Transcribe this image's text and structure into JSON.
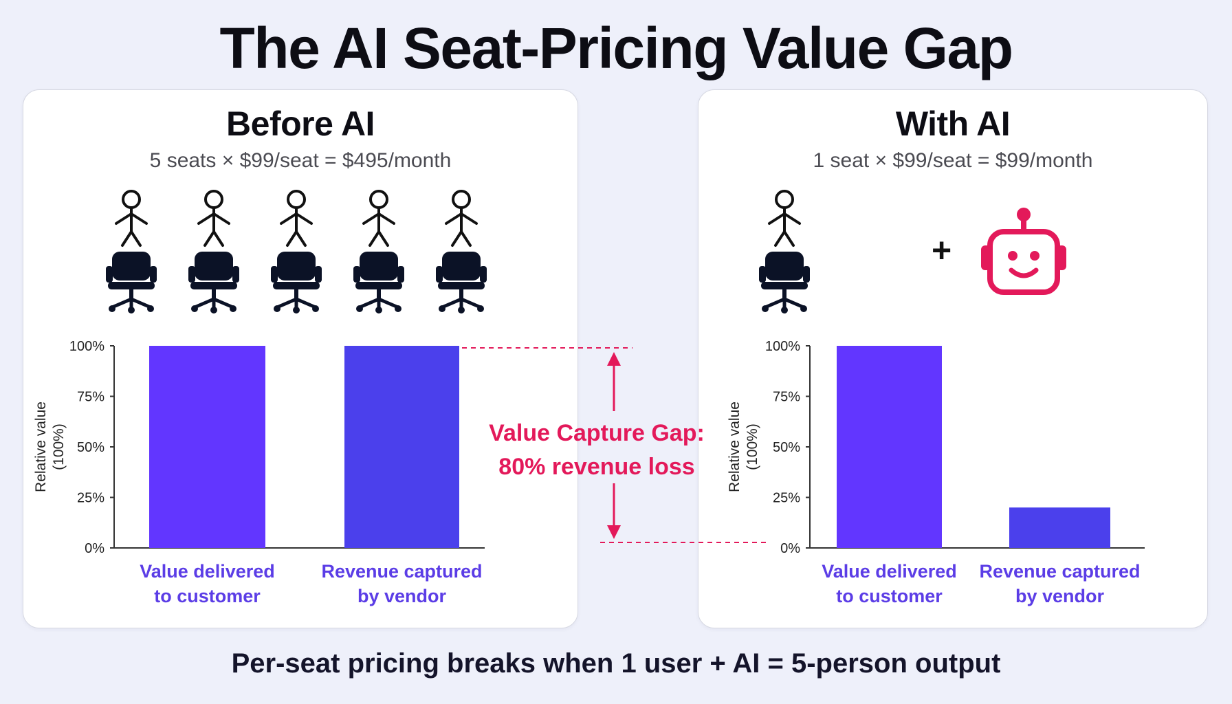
{
  "title": "The AI Seat-Pricing Value Gap",
  "bottom_caption": "Per-seat pricing breaks when 1 user + AI = 5-person output",
  "colors": {
    "bar_value": "#6236ff",
    "bar_revenue": "#4b40ec",
    "accent": "#e3195a",
    "category_text": "#5b3de6"
  },
  "panels": {
    "before": {
      "title": "Before AI",
      "formula": "5 seats × $99/seat = $495/month",
      "icons": [
        "person-icon",
        "office-chair-icon"
      ],
      "person_count": 5
    },
    "with": {
      "title": "With AI",
      "formula": "1 seat × $99/seat = $99/month",
      "icons": [
        "person-icon",
        "office-chair-icon",
        "plus-icon",
        "robot-icon"
      ],
      "person_count": 1,
      "plus": "+"
    }
  },
  "gap_annotation": {
    "line1": "Value Capture Gap:",
    "line2": "80% revenue loss"
  },
  "chart_data": [
    {
      "type": "bar",
      "panel": "Before AI",
      "categories": [
        [
          "Value delivered",
          "to customer"
        ],
        [
          "Revenue captured",
          "by vendor"
        ]
      ],
      "values": [
        100,
        100
      ],
      "ylabel": [
        "Relative value",
        "(100%)"
      ],
      "yticks": [
        "0%",
        "25%",
        "50%",
        "75%",
        "100%"
      ],
      "ylim": [
        0,
        100
      ],
      "grid": false
    },
    {
      "type": "bar",
      "panel": "With AI",
      "categories": [
        [
          "Value delivered",
          "to customer"
        ],
        [
          "Revenue captured",
          "by vendor"
        ]
      ],
      "values": [
        100,
        20
      ],
      "ylabel": [
        "Relative value",
        "(100%)"
      ],
      "yticks": [
        "0%",
        "25%",
        "50%",
        "75%",
        "100%"
      ],
      "ylim": [
        0,
        100
      ],
      "grid": false
    }
  ]
}
